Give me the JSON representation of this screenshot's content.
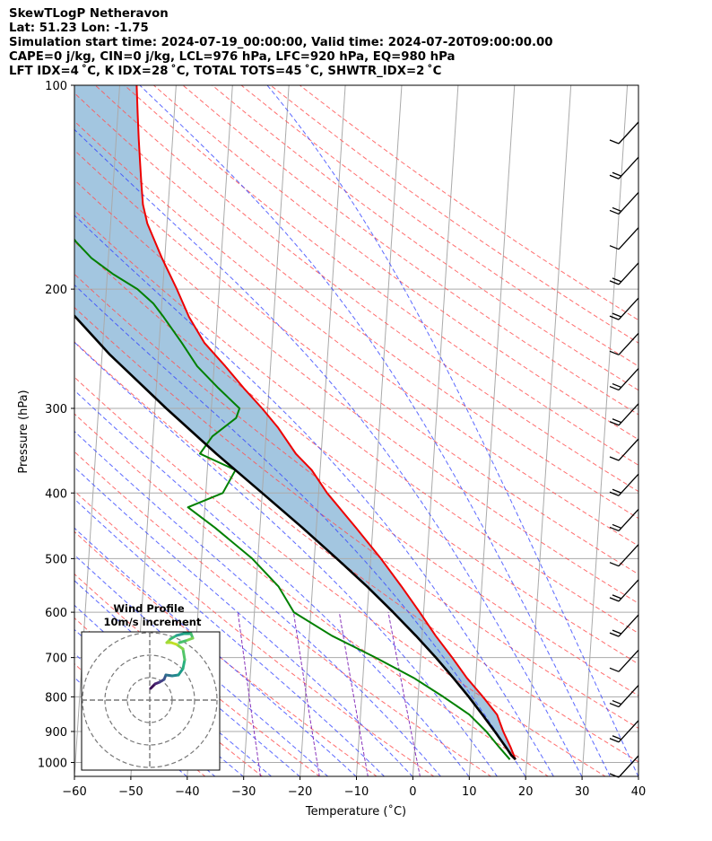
{
  "header": {
    "line1": "SkewTLogP Netheravon",
    "line2": "Lat: 51.23   Lon: -1.75",
    "line3": "Simulation start time: 2024-07-19_00:00:00, Valid time: 2024-07-20T09:00:00.00",
    "line4": "CAPE=0 j/kg, CIN=0 j/kg, LCL=976 hPa, LFC=920 hPa, EQ=980 hPa",
    "line5": "LFT IDX=4 ˚C, K IDX=28 ˚C, TOTAL TOTS=45 ˚C, SHWTR_IDX=2 ˚C"
  },
  "colors": {
    "temperature": "#ee0000",
    "dewpoint": "#008000",
    "parcel": "#000000",
    "shade": "#7fb0d4",
    "isotherm": "#aaaaaa",
    "dry_adiabat": "#ff5555",
    "moist_adiabat": "#3344ff",
    "mixing_ratio": "#8833bb"
  },
  "chart_data": {
    "type": "line",
    "title": "SkewTLogP Netheravon",
    "xlabel": "Temperature (˚C)",
    "ylabel": "Pressure (hPa)",
    "xlim": [
      -60,
      40
    ],
    "ylim": [
      1050,
      100
    ],
    "x_ticks": [
      -60,
      -50,
      -40,
      -30,
      -20,
      -10,
      0,
      10,
      20,
      30,
      40
    ],
    "y_ticks": [
      1000,
      900,
      800,
      700,
      600,
      500,
      400,
      300,
      200,
      100
    ],
    "series": [
      {
        "name": "Temperature",
        "p": [
          990,
          950,
          900,
          850,
          800,
          750,
          700,
          650,
          600,
          550,
          500,
          450,
          400,
          370,
          350,
          320,
          300,
          280,
          260,
          240,
          220,
          200,
          180,
          160,
          150,
          140,
          130,
          120,
          110,
          100
        ],
        "t": [
          18,
          17,
          15.5,
          14.2,
          11.5,
          8.4,
          5.6,
          2.4,
          -0.7,
          -4.2,
          -8.2,
          -13,
          -18.5,
          -21.5,
          -24.5,
          -28,
          -31,
          -34.5,
          -38,
          -42,
          -45,
          -47.5,
          -50.5,
          -53.5,
          -54.5,
          -55,
          -55.5,
          -56,
          -56.5,
          -57
        ]
      },
      {
        "name": "Dewpoint",
        "p": [
          990,
          950,
          900,
          850,
          800,
          750,
          700,
          650,
          600,
          550,
          500,
          450,
          420,
          400,
          370,
          350,
          330,
          310,
          300,
          280,
          260,
          240,
          220,
          210,
          200,
          190,
          180,
          170,
          160,
          150,
          140,
          130,
          120,
          110,
          100
        ],
        "t": [
          17,
          15,
          12.5,
          9.3,
          4.5,
          -1,
          -8,
          -16,
          -23,
          -26,
          -31,
          -38,
          -43,
          -37,
          -35,
          -41.5,
          -39.5,
          -35.5,
          -35,
          -39,
          -43,
          -46,
          -49.5,
          -51.5,
          -54.5,
          -59,
          -63,
          -66,
          -68.5,
          -70.5,
          -72,
          -72.5,
          -72.8,
          -73,
          -73
        ]
      },
      {
        "name": "Parcel",
        "p": [
          990,
          976,
          950,
          900,
          850,
          800,
          750,
          700,
          650,
          600,
          550,
          500,
          450,
          400,
          350,
          300,
          250,
          200,
          150,
          100
        ],
        "t": [
          18,
          17.2,
          16.2,
          14,
          11.6,
          9,
          6,
          2.7,
          -1.1,
          -5.4,
          -10.3,
          -16,
          -22.5,
          -30,
          -38.6,
          -48,
          -58.6,
          -70,
          -82.5,
          -95
        ]
      }
    ],
    "wind_barbs_count": 19,
    "inset": {
      "title": "Wind Profile",
      "subtitle": "10m/s increment"
    }
  }
}
